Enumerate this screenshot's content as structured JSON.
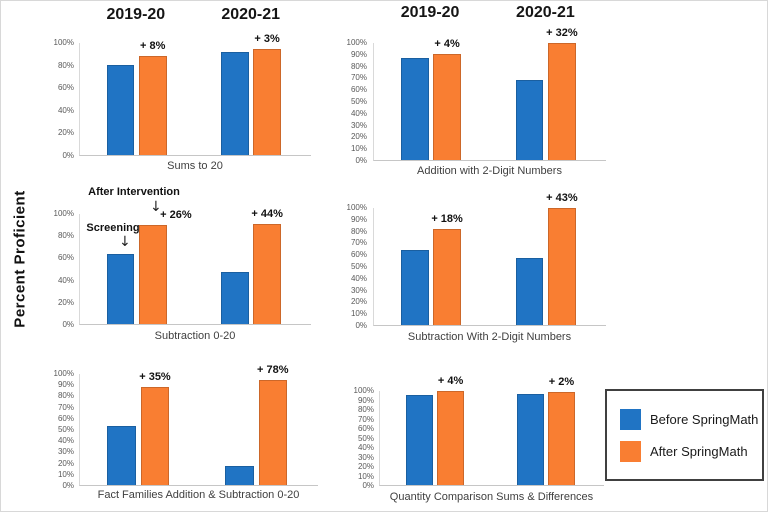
{
  "page": {
    "ylabel": "Percent Proficient"
  },
  "icons": {
    "down_arrow": "↓"
  },
  "colors": {
    "before": "#2074C4",
    "after": "#F97E32"
  },
  "year_headers": [
    "2019-20",
    "2020-21"
  ],
  "legend": {
    "position": "bottom-right",
    "items": [
      {
        "label": "Before SpringMath",
        "color": "#2074C4"
      },
      {
        "label": "After SpringMath",
        "color": "#F97E32"
      }
    ]
  },
  "chart_data": [
    {
      "type": "bar",
      "title": "Sums to 20",
      "categories": [
        "2019-20",
        "2020-21"
      ],
      "series": [
        {
          "name": "Before SpringMath",
          "values": [
            80,
            92
          ]
        },
        {
          "name": "After SpringMath",
          "values": [
            88,
            95
          ]
        }
      ],
      "delta_labels": [
        "+ 8%",
        "+ 3%"
      ],
      "ylim": [
        0,
        100
      ],
      "yticks": [
        "0%",
        "20%",
        "40%",
        "60%",
        "80%",
        "100%"
      ],
      "grid": false,
      "show_year_headers": true
    },
    {
      "type": "bar",
      "title": "Addition with 2-Digit Numbers",
      "categories": [
        "2019-20",
        "2020-21"
      ],
      "series": [
        {
          "name": "Before SpringMath",
          "values": [
            87,
            68
          ]
        },
        {
          "name": "After SpringMath",
          "values": [
            91,
            100
          ]
        }
      ],
      "delta_labels": [
        "+ 4%",
        "+ 32%"
      ],
      "ylim": [
        0,
        100
      ],
      "yticks": [
        "0%",
        "10%",
        "20%",
        "30%",
        "40%",
        "50%",
        "60%",
        "70%",
        "80%",
        "90%",
        "100%"
      ],
      "grid": false,
      "show_year_headers": true
    },
    {
      "type": "bar",
      "title": "Subtraction 0-20",
      "categories": [
        "2019-20",
        "2020-21"
      ],
      "series": [
        {
          "name": "Before SpringMath",
          "values": [
            64,
            47
          ]
        },
        {
          "name": "After SpringMath",
          "values": [
            90,
            91
          ]
        }
      ],
      "delta_labels": [
        "+ 26%",
        "+ 44%"
      ],
      "delta_dx": [
        10,
        0
      ],
      "ylim": [
        0,
        100
      ],
      "yticks": [
        "0%",
        "20%",
        "40%",
        "60%",
        "80%",
        "100%"
      ],
      "grid": false,
      "show_year_headers": false,
      "annotations": [
        {
          "text": "Screening",
          "points_to": "Before SpringMath 2019-20 bar"
        },
        {
          "text": "After Intervention",
          "points_to": "After SpringMath 2019-20 bar"
        }
      ]
    },
    {
      "type": "bar",
      "title": "Subtraction With 2-Digit Numbers",
      "categories": [
        "2019-20",
        "2020-21"
      ],
      "series": [
        {
          "name": "Before SpringMath",
          "values": [
            64,
            57
          ]
        },
        {
          "name": "After SpringMath",
          "values": [
            82,
            100
          ]
        }
      ],
      "delta_labels": [
        "+ 18%",
        "+ 43%"
      ],
      "ylim": [
        0,
        100
      ],
      "yticks": [
        "0%",
        "10%",
        "20%",
        "30%",
        "40%",
        "50%",
        "60%",
        "70%",
        "80%",
        "90%",
        "100%"
      ],
      "grid": false,
      "show_year_headers": false
    },
    {
      "type": "bar",
      "title": "Fact Families Addition & Subtraction 0-20",
      "categories": [
        "2019-20",
        "2020-21"
      ],
      "series": [
        {
          "name": "Before SpringMath",
          "values": [
            53,
            17
          ]
        },
        {
          "name": "After SpringMath",
          "values": [
            88,
            95
          ]
        }
      ],
      "delta_labels": [
        "+ 35%",
        "+ 78%"
      ],
      "ylim": [
        0,
        100
      ],
      "yticks": [
        "0%",
        "10%",
        "20%",
        "30%",
        "40%",
        "50%",
        "60%",
        "70%",
        "80%",
        "90%",
        "100%"
      ],
      "grid": false,
      "show_year_headers": false
    },
    {
      "type": "bar",
      "title": "Quantity Comparison Sums & Differences",
      "categories": [
        "2019-20",
        "2020-21"
      ],
      "series": [
        {
          "name": "Before SpringMath",
          "values": [
            96,
            97
          ]
        },
        {
          "name": "After SpringMath",
          "values": [
            100,
            99
          ]
        }
      ],
      "delta_labels": [
        "+ 4%",
        "+ 2%"
      ],
      "ylim": [
        0,
        100
      ],
      "yticks": [
        "0%",
        "10%",
        "20%",
        "30%",
        "40%",
        "50%",
        "60%",
        "70%",
        "80%",
        "90%",
        "100%"
      ],
      "grid": false,
      "show_year_headers": false
    }
  ]
}
